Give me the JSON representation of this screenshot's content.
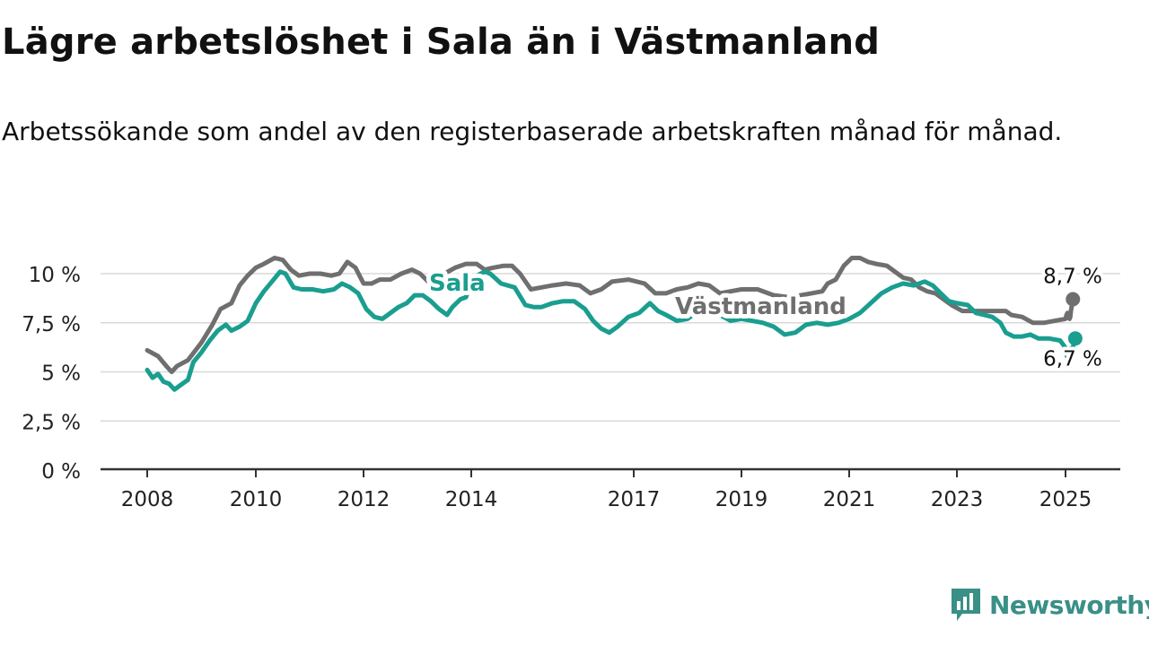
{
  "title": "Lägre arbetslöshet i Sala än i Västmanland",
  "subtitle": "Arbetssökande som andel av den registerbaserade arbetskraften månad för månad.",
  "brand": {
    "name": "Newsworthy",
    "icon": "bar-chart-logo-icon",
    "color": "#3a8f86"
  },
  "chart_data": {
    "type": "line",
    "ylim": [
      0,
      11
    ],
    "yticks": [
      0,
      2.5,
      5,
      7.5,
      10
    ],
    "ytick_labels": [
      "0 %",
      "2,5 %",
      "5 %",
      "7,5 %",
      "10 %"
    ],
    "xlim": [
      2007.9,
      2026.0
    ],
    "xticks": [
      2008,
      2010,
      2012,
      2014,
      2017,
      2019,
      2021,
      2023,
      2025
    ],
    "xtick_labels": [
      "2008",
      "2010",
      "2012",
      "2014",
      "2017",
      "2019",
      "2021",
      "2023",
      "2025"
    ],
    "grid": true,
    "series": [
      {
        "name": "Västmanland",
        "color": "#6f6f6f",
        "end_label": "8,7 %",
        "points": [
          [
            2008.0,
            6.1
          ],
          [
            2008.2,
            5.8
          ],
          [
            2008.35,
            5.3
          ],
          [
            2008.45,
            5.0
          ],
          [
            2008.55,
            5.3
          ],
          [
            2008.75,
            5.6
          ],
          [
            2009.0,
            6.5
          ],
          [
            2009.2,
            7.4
          ],
          [
            2009.35,
            8.2
          ],
          [
            2009.55,
            8.5
          ],
          [
            2009.7,
            9.4
          ],
          [
            2009.85,
            9.9
          ],
          [
            2010.0,
            10.3
          ],
          [
            2010.15,
            10.5
          ],
          [
            2010.35,
            10.8
          ],
          [
            2010.5,
            10.7
          ],
          [
            2010.65,
            10.2
          ],
          [
            2010.8,
            9.9
          ],
          [
            2011.0,
            10.0
          ],
          [
            2011.2,
            10.0
          ],
          [
            2011.4,
            9.9
          ],
          [
            2011.55,
            10.0
          ],
          [
            2011.7,
            10.6
          ],
          [
            2011.85,
            10.3
          ],
          [
            2012.0,
            9.5
          ],
          [
            2012.15,
            9.5
          ],
          [
            2012.3,
            9.7
          ],
          [
            2012.5,
            9.7
          ],
          [
            2012.7,
            10.0
          ],
          [
            2012.9,
            10.2
          ],
          [
            2013.05,
            10.0
          ],
          [
            2013.2,
            9.6
          ],
          [
            2013.35,
            9.7
          ],
          [
            2013.5,
            10.0
          ],
          [
            2013.7,
            10.3
          ],
          [
            2013.9,
            10.5
          ],
          [
            2014.1,
            10.5
          ],
          [
            2014.25,
            10.2
          ],
          [
            2014.4,
            10.3
          ],
          [
            2014.6,
            10.4
          ],
          [
            2014.75,
            10.4
          ],
          [
            2014.9,
            10.0
          ],
          [
            2015.1,
            9.2
          ],
          [
            2015.3,
            9.3
          ],
          [
            2015.5,
            9.4
          ],
          [
            2015.75,
            9.5
          ],
          [
            2016.0,
            9.4
          ],
          [
            2016.2,
            9.0
          ],
          [
            2016.4,
            9.2
          ],
          [
            2016.6,
            9.6
          ],
          [
            2016.9,
            9.7
          ],
          [
            2017.2,
            9.5
          ],
          [
            2017.4,
            9.0
          ],
          [
            2017.6,
            9.0
          ],
          [
            2017.8,
            9.2
          ],
          [
            2018.0,
            9.3
          ],
          [
            2018.2,
            9.5
          ],
          [
            2018.4,
            9.4
          ],
          [
            2018.6,
            9.0
          ],
          [
            2018.8,
            9.1
          ],
          [
            2019.0,
            9.2
          ],
          [
            2019.3,
            9.2
          ],
          [
            2019.6,
            8.9
          ],
          [
            2019.9,
            8.8
          ],
          [
            2020.1,
            8.9
          ],
          [
            2020.3,
            9.0
          ],
          [
            2020.5,
            9.1
          ],
          [
            2020.6,
            9.5
          ],
          [
            2020.75,
            9.7
          ],
          [
            2020.9,
            10.4
          ],
          [
            2021.05,
            10.8
          ],
          [
            2021.2,
            10.8
          ],
          [
            2021.35,
            10.6
          ],
          [
            2021.5,
            10.5
          ],
          [
            2021.7,
            10.4
          ],
          [
            2021.85,
            10.1
          ],
          [
            2022.0,
            9.8
          ],
          [
            2022.15,
            9.7
          ],
          [
            2022.3,
            9.3
          ],
          [
            2022.45,
            9.1
          ],
          [
            2022.6,
            9.0
          ],
          [
            2022.75,
            8.7
          ],
          [
            2022.9,
            8.4
          ],
          [
            2023.1,
            8.1
          ],
          [
            2023.4,
            8.1
          ],
          [
            2023.7,
            8.1
          ],
          [
            2023.9,
            8.1
          ],
          [
            2024.0,
            7.9
          ],
          [
            2024.2,
            7.8
          ],
          [
            2024.4,
            7.5
          ],
          [
            2024.6,
            7.5
          ],
          [
            2024.8,
            7.6
          ],
          [
            2025.0,
            7.7
          ],
          [
            2025.15,
            7.9
          ],
          [
            2025.3,
            8.0
          ],
          [
            2025.45,
            7.9
          ],
          [
            2025.6,
            7.7
          ],
          [
            2025.7,
            7.8
          ],
          [
            2025.8,
            8.1
          ],
          [
            2025.9,
            8.3
          ],
          [
            2026.0,
            8.6
          ],
          [
            2026.1,
            8.7
          ]
        ]
      },
      {
        "name": "Sala",
        "color": "#1a9e8f",
        "end_label": "6,7 %",
        "points": [
          [
            2008.0,
            5.1
          ],
          [
            2008.1,
            4.7
          ],
          [
            2008.2,
            4.9
          ],
          [
            2008.3,
            4.5
          ],
          [
            2008.4,
            4.4
          ],
          [
            2008.5,
            4.1
          ],
          [
            2008.6,
            4.3
          ],
          [
            2008.75,
            4.6
          ],
          [
            2008.85,
            5.5
          ],
          [
            2009.0,
            6.0
          ],
          [
            2009.15,
            6.6
          ],
          [
            2009.3,
            7.1
          ],
          [
            2009.45,
            7.4
          ],
          [
            2009.55,
            7.1
          ],
          [
            2009.7,
            7.3
          ],
          [
            2009.85,
            7.6
          ],
          [
            2010.0,
            8.5
          ],
          [
            2010.15,
            9.1
          ],
          [
            2010.3,
            9.6
          ],
          [
            2010.45,
            10.1
          ],
          [
            2010.55,
            10.0
          ],
          [
            2010.7,
            9.3
          ],
          [
            2010.85,
            9.2
          ],
          [
            2011.05,
            9.2
          ],
          [
            2011.25,
            9.1
          ],
          [
            2011.45,
            9.2
          ],
          [
            2011.6,
            9.5
          ],
          [
            2011.75,
            9.3
          ],
          [
            2011.9,
            9.0
          ],
          [
            2012.05,
            8.2
          ],
          [
            2012.2,
            7.8
          ],
          [
            2012.35,
            7.7
          ],
          [
            2012.5,
            8.0
          ],
          [
            2012.65,
            8.3
          ],
          [
            2012.8,
            8.5
          ],
          [
            2012.95,
            8.9
          ],
          [
            2013.1,
            8.9
          ],
          [
            2013.25,
            8.6
          ],
          [
            2013.4,
            8.2
          ],
          [
            2013.55,
            7.9
          ],
          [
            2013.65,
            8.3
          ],
          [
            2013.8,
            8.7
          ],
          [
            2013.9,
            8.8
          ],
          [
            2014.0,
            9.5
          ],
          [
            2014.1,
            9.9
          ],
          [
            2014.25,
            10.1
          ],
          [
            2014.35,
            10.0
          ],
          [
            2014.55,
            9.5
          ],
          [
            2014.8,
            9.3
          ],
          [
            2015.0,
            8.4
          ],
          [
            2015.15,
            8.3
          ],
          [
            2015.3,
            8.3
          ],
          [
            2015.5,
            8.5
          ],
          [
            2015.7,
            8.6
          ],
          [
            2015.9,
            8.6
          ],
          [
            2016.1,
            8.2
          ],
          [
            2016.25,
            7.6
          ],
          [
            2016.4,
            7.2
          ],
          [
            2016.55,
            7.0
          ],
          [
            2016.7,
            7.3
          ],
          [
            2016.9,
            7.8
          ],
          [
            2017.1,
            8.0
          ],
          [
            2017.3,
            8.5
          ],
          [
            2017.45,
            8.1
          ],
          [
            2017.6,
            7.9
          ],
          [
            2017.8,
            7.6
          ],
          [
            2018.0,
            7.7
          ],
          [
            2018.2,
            8.1
          ],
          [
            2018.4,
            8.2
          ],
          [
            2018.6,
            7.9
          ],
          [
            2018.8,
            7.6
          ],
          [
            2019.0,
            7.7
          ],
          [
            2019.2,
            7.6
          ],
          [
            2019.4,
            7.5
          ],
          [
            2019.6,
            7.3
          ],
          [
            2019.8,
            6.9
          ],
          [
            2020.0,
            7.0
          ],
          [
            2020.2,
            7.4
          ],
          [
            2020.4,
            7.5
          ],
          [
            2020.6,
            7.4
          ],
          [
            2020.8,
            7.5
          ],
          [
            2021.0,
            7.7
          ],
          [
            2021.2,
            8.0
          ],
          [
            2021.4,
            8.5
          ],
          [
            2021.6,
            9.0
          ],
          [
            2021.8,
            9.3
          ],
          [
            2022.0,
            9.5
          ],
          [
            2022.2,
            9.4
          ],
          [
            2022.4,
            9.6
          ],
          [
            2022.55,
            9.4
          ],
          [
            2022.7,
            9.0
          ],
          [
            2022.85,
            8.6
          ],
          [
            2023.0,
            8.5
          ],
          [
            2023.2,
            8.4
          ],
          [
            2023.35,
            8.0
          ],
          [
            2023.5,
            7.9
          ],
          [
            2023.65,
            7.8
          ],
          [
            2023.8,
            7.5
          ],
          [
            2023.9,
            7.0
          ],
          [
            2024.05,
            6.8
          ],
          [
            2024.2,
            6.8
          ],
          [
            2024.35,
            6.9
          ],
          [
            2024.5,
            6.7
          ],
          [
            2024.7,
            6.7
          ],
          [
            2024.9,
            6.6
          ],
          [
            2025.05,
            6.2
          ],
          [
            2025.2,
            5.8
          ],
          [
            2025.35,
            5.9
          ],
          [
            2025.5,
            5.7
          ],
          [
            2025.65,
            6.0
          ],
          [
            2025.8,
            6.2
          ],
          [
            2025.95,
            5.8
          ],
          [
            2026.05,
            5.9
          ],
          [
            2026.15,
            6.3
          ],
          [
            2026.3,
            6.6
          ],
          [
            2026.45,
            6.7
          ]
        ]
      }
    ]
  }
}
